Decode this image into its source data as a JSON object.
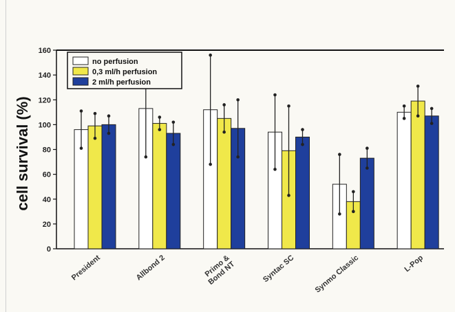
{
  "chart_data": {
    "type": "bar",
    "ylabel": "cell survival (%)",
    "xlabel": "",
    "ylim": [
      0,
      160
    ],
    "yticks": [
      0,
      20,
      40,
      60,
      80,
      100,
      120,
      140,
      160
    ],
    "grid": false,
    "legend_position": "top-left",
    "categories": [
      "President",
      "Allbond 2",
      "Primo & Bond NT",
      "Syntac SC",
      "Synmo Classic",
      "L-Pop"
    ],
    "category_label_lines": [
      [
        "President"
      ],
      [
        "Allbond 2"
      ],
      [
        "Primo &",
        "Bond NT"
      ],
      [
        "Syntac SC"
      ],
      [
        "Synmo Classic"
      ],
      [
        "L-Pop"
      ]
    ],
    "series": [
      {
        "name": "no perfusion",
        "color": "#ffffff",
        "values": [
          96,
          113,
          112,
          94,
          52,
          110
        ],
        "error": [
          15,
          39,
          44,
          30,
          24,
          5
        ]
      },
      {
        "name": "0,3 ml/h perfusion",
        "color": "#f0e84a",
        "values": [
          99,
          101,
          105,
          79,
          38,
          119
        ],
        "error": [
          10,
          5,
          11,
          36,
          8,
          12
        ]
      },
      {
        "name": "2 ml/h perfusion",
        "color": "#1f3f9c",
        "values": [
          100,
          93,
          97,
          90,
          73,
          107
        ],
        "error": [
          7,
          9,
          23,
          6,
          8,
          6
        ]
      }
    ]
  }
}
